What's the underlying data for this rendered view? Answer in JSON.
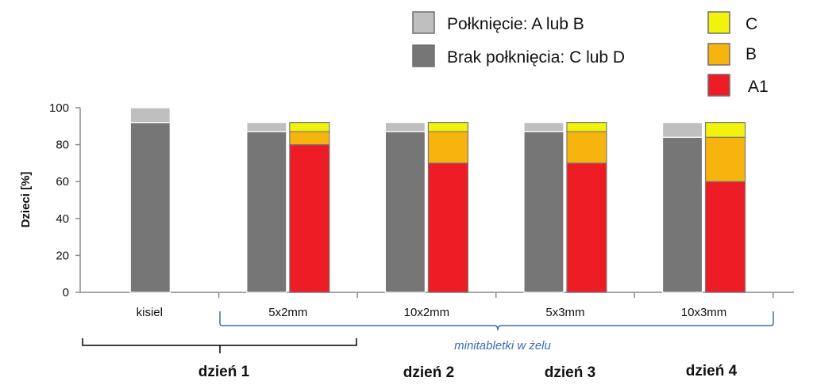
{
  "chart_data": {
    "type": "bar",
    "ylabel": "Dzieci [%]",
    "ylim": [
      0,
      100
    ],
    "yticks": [
      0,
      20,
      40,
      60,
      80,
      100
    ],
    "categories": [
      "kisiel",
      "5x2mm",
      "10x2mm",
      "5x3mm",
      "10x3mm"
    ],
    "groups": [
      {
        "category": "kisiel",
        "bars": [
          {
            "kind": "swallow",
            "segments": [
              {
                "key": "brak",
                "value": 92
              },
              {
                "key": "polkniecie",
                "value": 8
              }
            ]
          }
        ]
      },
      {
        "category": "5x2mm",
        "bars": [
          {
            "kind": "swallow",
            "segments": [
              {
                "key": "brak",
                "value": 87
              },
              {
                "key": "polkniecie",
                "value": 5
              }
            ]
          },
          {
            "kind": "grade",
            "segments": [
              {
                "key": "A1",
                "value": 80
              },
              {
                "key": "B",
                "value": 7
              },
              {
                "key": "C",
                "value": 5
              }
            ]
          }
        ]
      },
      {
        "category": "10x2mm",
        "bars": [
          {
            "kind": "swallow",
            "segments": [
              {
                "key": "brak",
                "value": 87
              },
              {
                "key": "polkniecie",
                "value": 5
              }
            ]
          },
          {
            "kind": "grade",
            "segments": [
              {
                "key": "A1",
                "value": 70
              },
              {
                "key": "B",
                "value": 17
              },
              {
                "key": "C",
                "value": 5
              }
            ]
          }
        ]
      },
      {
        "category": "5x3mm",
        "bars": [
          {
            "kind": "swallow",
            "segments": [
              {
                "key": "brak",
                "value": 87
              },
              {
                "key": "polkniecie",
                "value": 5
              }
            ]
          },
          {
            "kind": "grade",
            "segments": [
              {
                "key": "A1",
                "value": 70
              },
              {
                "key": "B",
                "value": 17
              },
              {
                "key": "C",
                "value": 5
              }
            ]
          }
        ]
      },
      {
        "category": "10x3mm",
        "bars": [
          {
            "kind": "swallow",
            "segments": [
              {
                "key": "brak",
                "value": 84
              },
              {
                "key": "polkniecie",
                "value": 8
              }
            ]
          },
          {
            "kind": "grade",
            "segments": [
              {
                "key": "A1",
                "value": 60
              },
              {
                "key": "B",
                "value": 24
              },
              {
                "key": "C",
                "value": 8
              }
            ]
          }
        ]
      }
    ],
    "legend": [
      {
        "key": "polkniecie",
        "label": "Połknięcie: A lub B",
        "color": "#bfbfbf"
      },
      {
        "key": "brak",
        "label": "Brak połknięcia: C lub D",
        "color": "#767676"
      },
      {
        "key": "C",
        "label": "C",
        "color": "#f2f20c"
      },
      {
        "key": "B",
        "label": "B",
        "color": "#f7b40f"
      },
      {
        "key": "A1",
        "label": "A1",
        "color": "#ee1c24"
      }
    ],
    "annotations": {
      "minitabletki": "minitabletki w żelu",
      "days": [
        "dzień 1",
        "dzień 2",
        "dzień 3",
        "dzień 4"
      ]
    },
    "grid": false
  }
}
